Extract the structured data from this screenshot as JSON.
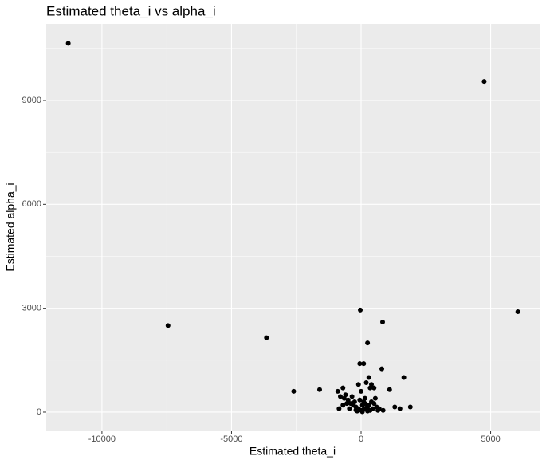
{
  "chart_data": {
    "type": "scatter",
    "title": "Estimated theta_i vs alpha_i",
    "x_label": "Estimated theta_i",
    "y_label": "Estimated alpha_i",
    "x": [
      -11300,
      4750,
      -7450,
      -3650,
      6050,
      -30,
      830,
      250,
      -2600,
      -1600,
      1650,
      800,
      -50,
      100,
      300,
      1100,
      1300,
      1500,
      1900,
      850,
      -900,
      -800,
      -700,
      -600,
      -500,
      -400,
      -300,
      -200,
      -100,
      0,
      100,
      200,
      300,
      400,
      500,
      600,
      700,
      -250,
      150,
      350,
      400,
      200,
      -100,
      -550,
      -700,
      -850,
      250,
      -150,
      50,
      450,
      -350,
      550,
      650,
      0,
      -50,
      100,
      -450,
      150,
      350,
      -650,
      250,
      50,
      -200,
      500
    ],
    "y": [
      10650,
      9550,
      2500,
      2150,
      2900,
      2950,
      2600,
      2000,
      600,
      650,
      1000,
      1250,
      1400,
      1400,
      1000,
      650,
      150,
      100,
      150,
      50,
      600,
      450,
      700,
      500,
      350,
      250,
      200,
      150,
      100,
      50,
      80,
      120,
      200,
      300,
      250,
      150,
      100,
      300,
      400,
      700,
      800,
      850,
      800,
      250,
      200,
      100,
      30,
      30,
      200,
      100,
      450,
      400,
      50,
      600,
      350,
      300,
      100,
      250,
      50,
      400,
      150,
      10,
      60,
      700
    ],
    "color": "#000000",
    "xlim": [
      -12150,
      6890
    ],
    "ylim": [
      -530,
      11210
    ],
    "xticks": [
      -10000,
      -5000,
      0,
      5000
    ],
    "yticks": [
      0,
      3000,
      6000,
      9000
    ],
    "x_minor_grid": [
      -7500,
      -2500,
      2500
    ],
    "y_minor_grid": [
      1500,
      4500,
      7500,
      10500
    ],
    "grid": true
  }
}
